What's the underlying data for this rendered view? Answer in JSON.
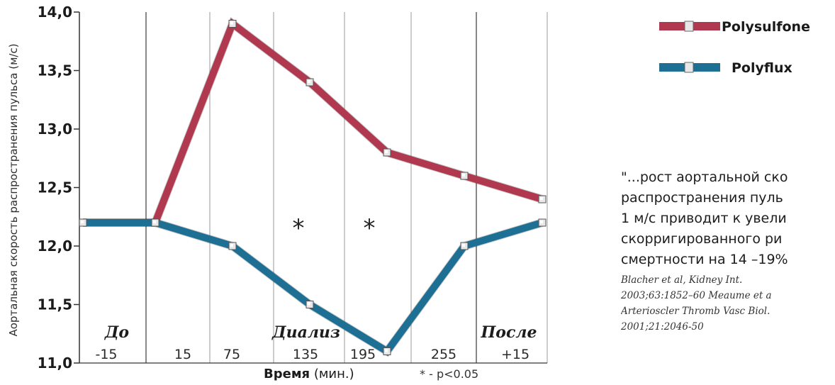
{
  "chart_data": {
    "type": "line",
    "ylabel": "Аортальная скорость распространения пульса (м/с)",
    "ylim": [
      11.0,
      14.0
    ],
    "yticks": [
      "14,0",
      "13,5",
      "13,0",
      "12,5",
      "12,0",
      "11,5",
      "11,0"
    ],
    "grid": "vertical lines",
    "categories": [
      "-15",
      "15",
      "75",
      "135",
      "195",
      "255",
      "+15"
    ],
    "phases": [
      "До",
      "Диализ",
      "После"
    ],
    "xlabel_bold": "Время",
    "xlabel_unit": "(мин.)",
    "significance_markers": [
      "*",
      "*"
    ],
    "p_note": "* - p<0.05",
    "legend_position": "top-right",
    "series": [
      {
        "name": "Polysulfone",
        "color": "#b0394f",
        "points": [
          {
            "x": "-15",
            "y": 12.2
          },
          {
            "x": "-15/15 boundary",
            "y": 12.2
          },
          {
            "x": "75",
            "y": 13.9
          },
          {
            "x": "135",
            "y": 13.4
          },
          {
            "x": "195",
            "y": 12.8
          },
          {
            "x": "255",
            "y": 12.6
          },
          {
            "x": "+15",
            "y": 12.4
          }
        ]
      },
      {
        "name": "Polyflux",
        "color": "#1d6f94",
        "points": [
          {
            "x": "-15",
            "y": 12.2
          },
          {
            "x": "-15/15 boundary",
            "y": 12.2
          },
          {
            "x": "75",
            "y": 12.0
          },
          {
            "x": "135",
            "y": 11.5
          },
          {
            "x": "195",
            "y": 11.1
          },
          {
            "x": "255",
            "y": 12.0
          },
          {
            "x": "+15",
            "y": 12.2
          }
        ]
      }
    ]
  },
  "quote": {
    "lines": [
      "\"...рост аортальной ско",
      "распространения пуль",
      "1 м/с приводит к увели",
      "скорригированного ри",
      "смертности на 14 –19%"
    ],
    "citation": [
      "Blacher et al, Kidney Int.",
      "2003;63:1852–60 Meaume et a",
      "Arterioscler Thromb Vasc Biol.",
      "2001;21:2046-50"
    ]
  }
}
